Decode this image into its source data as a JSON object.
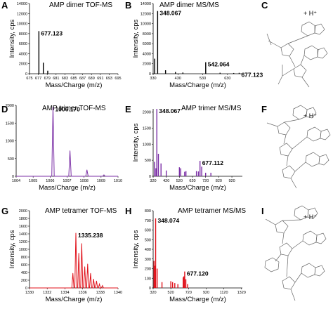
{
  "panel_labels": {
    "A": "A",
    "B": "B",
    "C": "C",
    "D": "D",
    "E": "E",
    "F": "F",
    "G": "G",
    "H": "H",
    "I": "I"
  },
  "molecule_charge": "+ H⁺",
  "colors": {
    "dimer": "#000000",
    "trimer": "#7b2fa6",
    "tetramer": "#e0121b",
    "structure": "#666666"
  },
  "chart_data": [
    {
      "id": "A",
      "type": "bar",
      "title": "AMP dimer TOF-MS",
      "xlabel": "Mass/Charge (m/z)",
      "ylabel": "Intensity, cps",
      "xlim": [
        675,
        695
      ],
      "ylim": [
        0,
        14000
      ],
      "xticks": [
        "675",
        "677",
        "679",
        "681",
        "683",
        "685",
        "687",
        "689",
        "691",
        "693",
        "695"
      ],
      "yticks": [
        "0",
        "2000",
        "4000",
        "6000",
        "8000",
        "10000",
        "12000",
        "14000"
      ],
      "x": [
        677.12,
        678.12,
        679.12
      ],
      "values": [
        8500,
        2200,
        600
      ],
      "annotations": [
        {
          "text": "677.123",
          "x": 677.12,
          "y": 8500
        }
      ]
    },
    {
      "id": "B",
      "type": "bar",
      "title": "AMP dimer MS/MS",
      "xlabel": "Mass/Charge (m/z)",
      "ylabel": "Intensity, cps",
      "xlim": [
        330,
        690
      ],
      "ylim": [
        0,
        14000
      ],
      "xticks": [
        "330",
        "430",
        "530",
        "630"
      ],
      "yticks": [
        "0",
        "2000",
        "4000",
        "6000",
        "8000",
        "10000",
        "12000",
        "14000"
      ],
      "x": [
        336,
        348.07,
        380,
        420,
        450,
        542.06,
        600,
        655,
        677.12
      ],
      "values": [
        3000,
        12500,
        700,
        350,
        250,
        2300,
        200,
        150,
        180
      ],
      "annotations": [
        {
          "text": "348.067",
          "x": 348.07,
          "y": 12500
        },
        {
          "text": "542.064",
          "x": 542.06,
          "y": 2300
        },
        {
          "text": "677.123",
          "x": 677.12,
          "y": 180
        }
      ]
    },
    {
      "id": "D",
      "type": "line",
      "title": "AMP trimer TOF-MS",
      "xlabel": "Mass/Charge (m/z)",
      "ylabel": "",
      "xlim": [
        1004,
        1010
      ],
      "ylim": [
        0,
        2000
      ],
      "xticks": [
        "1004",
        "1005",
        "1006",
        "1007",
        "1008",
        "1009",
        "1010"
      ],
      "yticks": [
        "0",
        "500",
        "1000",
        "1500",
        "2000"
      ],
      "peaks": [
        [
          1006.17,
          1950
        ],
        [
          1007.17,
          720
        ],
        [
          1008.17,
          180
        ],
        [
          1009.17,
          40
        ]
      ],
      "annotations": [
        {
          "text": "1006.170",
          "x": 1006.17,
          "y": 1950
        }
      ]
    },
    {
      "id": "E",
      "type": "bar",
      "title": "AMP trimer MS/MS",
      "xlabel": "Mass/Charge (m/z)",
      "ylabel": "Intensity, cps",
      "xlim": [
        320,
        1000
      ],
      "ylim": [
        0,
        2100
      ],
      "xticks": [
        "320",
        "420",
        "520",
        "620",
        "720",
        "820",
        "920"
      ],
      "yticks": [
        "0",
        "500",
        "1000",
        "1500",
        "2000"
      ],
      "x": [
        330,
        341,
        348.07,
        360,
        380,
        420,
        520,
        530,
        560,
        570,
        650,
        665,
        677.11,
        690,
        720,
        760
      ],
      "values": [
        450,
        250,
        2100,
        700,
        400,
        180,
        280,
        250,
        140,
        160,
        160,
        150,
        480,
        300,
        110,
        110
      ],
      "annotations": [
        {
          "text": "348.067",
          "x": 348.07,
          "y": 2100
        },
        {
          "text": "677.112",
          "x": 677.11,
          "y": 480
        }
      ]
    },
    {
      "id": "G",
      "type": "line",
      "title": "AMP tetramer TOF-MS",
      "xlabel": "Mass/Charge (m/z)",
      "ylabel": "Intensity, cps",
      "xlim": [
        1330,
        1340
      ],
      "ylim": [
        0,
        2000
      ],
      "xticks": [
        "1330",
        "1332",
        "1334",
        "1336",
        "1338",
        "1340"
      ],
      "yticks": [
        "0",
        "200",
        "400",
        "600",
        "800",
        "1000",
        "1200",
        "1400",
        "1600",
        "1800",
        "2000"
      ],
      "peaks": [
        [
          1334.9,
          380
        ],
        [
          1335.238,
          1420
        ],
        [
          1335.57,
          900
        ],
        [
          1335.9,
          1150
        ],
        [
          1336.24,
          550
        ],
        [
          1336.57,
          620
        ],
        [
          1336.9,
          380
        ],
        [
          1337.24,
          230
        ],
        [
          1337.57,
          180
        ],
        [
          1337.9,
          100
        ],
        [
          1338.24,
          60
        ]
      ],
      "annotations": [
        {
          "text": "1335.238",
          "x": 1335.238,
          "y": 1420
        }
      ]
    },
    {
      "id": "H",
      "type": "bar",
      "title": "AMP tetramer MS/MS",
      "xlabel": "Mass/Charge (m/z)",
      "ylabel": "Intensity, cps",
      "xlim": [
        320,
        1330
      ],
      "ylim": [
        0,
        800
      ],
      "xticks": [
        "320",
        "520",
        "720",
        "920",
        "1120",
        "1320"
      ],
      "yticks": [
        "0",
        "100",
        "200",
        "300",
        "400",
        "500",
        "600",
        "700",
        "800"
      ],
      "x": [
        330,
        341,
        348.07,
        365,
        420,
        520,
        540,
        565,
        600,
        660,
        668,
        677.12,
        690,
        710
      ],
      "values": [
        280,
        230,
        720,
        200,
        60,
        70,
        60,
        50,
        40,
        110,
        120,
        170,
        90,
        40
      ],
      "annotations": [
        {
          "text": "348.074",
          "x": 348.07,
          "y": 720
        },
        {
          "text": "677.120",
          "x": 677.12,
          "y": 170
        }
      ]
    }
  ]
}
